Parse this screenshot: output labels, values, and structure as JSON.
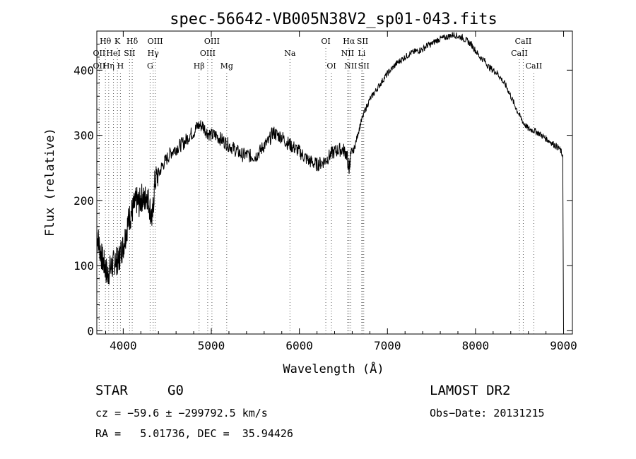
{
  "chart_data": {
    "type": "line",
    "title": "spec-56642-VB005N38V2_sp01-043.fits",
    "xlabel": "Wavelength (Å)",
    "ylabel": "Flux (relative)",
    "xlim": [
      3700,
      9100
    ],
    "ylim": [
      -5,
      460
    ],
    "xticks": [
      4000,
      5000,
      6000,
      7000,
      8000,
      9000
    ],
    "yticks": [
      0,
      100,
      200,
      300,
      400
    ],
    "grid": false,
    "series": [
      {
        "x": [
          3700,
          3730,
          3760,
          3790,
          3820,
          3850,
          3880,
          3910,
          3940,
          3970,
          4000,
          4030,
          4060,
          4090,
          4120,
          4150,
          4180,
          4210,
          4240,
          4270,
          4300,
          4330,
          4360,
          4400,
          4450,
          4500,
          4550,
          4600,
          4650,
          4700,
          4750,
          4800,
          4850,
          4900,
          4950,
          5000,
          5050,
          5100,
          5150,
          5200,
          5250,
          5300,
          5350,
          5400,
          5450,
          5500,
          5550,
          5600,
          5650,
          5700,
          5750,
          5800,
          5850,
          5900,
          5950,
          6000,
          6050,
          6100,
          6150,
          6200,
          6250,
          6300,
          6350,
          6400,
          6450,
          6500,
          6540,
          6563,
          6580,
          6620,
          6660,
          6700,
          6750,
          6800,
          6850,
          6900,
          6950,
          7000,
          7050,
          7100,
          7150,
          7200,
          7250,
          7300,
          7350,
          7400,
          7450,
          7500,
          7550,
          7600,
          7650,
          7700,
          7750,
          7800,
          7850,
          7900,
          7950,
          8000,
          8050,
          8100,
          8150,
          8200,
          8250,
          8300,
          8350,
          8400,
          8450,
          8500,
          8550,
          8600,
          8650,
          8700,
          8750,
          8800,
          8850,
          8900,
          8950,
          8990
        ],
        "y": [
          150,
          130,
          110,
          100,
          85,
          95,
          100,
          110,
          105,
          120,
          130,
          150,
          170,
          180,
          190,
          200,
          195,
          205,
          200,
          210,
          190,
          170,
          230,
          240,
          255,
          265,
          275,
          280,
          285,
          290,
          300,
          305,
          315,
          315,
          305,
          300,
          300,
          295,
          290,
          285,
          280,
          275,
          270,
          270,
          268,
          268,
          275,
          285,
          290,
          305,
          300,
          298,
          290,
          285,
          280,
          275,
          268,
          262,
          258,
          255,
          258,
          262,
          270,
          275,
          278,
          278,
          270,
          245,
          268,
          278,
          300,
          320,
          340,
          355,
          365,
          375,
          385,
          395,
          402,
          410,
          415,
          420,
          425,
          428,
          430,
          432,
          438,
          440,
          445,
          448,
          450,
          452,
          455,
          452,
          450,
          445,
          440,
          430,
          420,
          415,
          405,
          400,
          395,
          385,
          375,
          360,
          345,
          330,
          318,
          310,
          308,
          305,
          300,
          295,
          290,
          285,
          280,
          270
        ]
      }
    ],
    "line_markers": [
      {
        "label": "Hθ",
        "x": 3798,
        "row": 1
      },
      {
        "label": "OII",
        "x": 3727,
        "row": 2
      },
      {
        "label": "OII",
        "x": 3727,
        "row": 3
      },
      {
        "label": "K",
        "x": 3934,
        "row": 1
      },
      {
        "label": "HeI",
        "x": 3889,
        "row": 2
      },
      {
        "label": "Hη",
        "x": 3835,
        "row": 3
      },
      {
        "label": "SII",
        "x": 4072,
        "row": 2
      },
      {
        "label": "H",
        "x": 3968,
        "row": 3
      },
      {
        "label": "Hδ",
        "x": 4102,
        "row": 1
      },
      {
        "label": "OIII",
        "x": 4363,
        "row": 1
      },
      {
        "label": "Hγ",
        "x": 4340,
        "row": 2
      },
      {
        "label": "G",
        "x": 4305,
        "row": 3
      },
      {
        "label": "Hβ",
        "x": 4861,
        "row": 3
      },
      {
        "label": "OIII",
        "x": 5007,
        "row": 1
      },
      {
        "label": "OIII",
        "x": 4959,
        "row": 2
      },
      {
        "label": "Mg",
        "x": 5175,
        "row": 3
      },
      {
        "label": "Na",
        "x": 5893,
        "row": 2
      },
      {
        "label": "OI",
        "x": 6300,
        "row": 1
      },
      {
        "label": "OI",
        "x": 6364,
        "row": 3
      },
      {
        "label": "Hα",
        "x": 6563,
        "row": 1
      },
      {
        "label": "SII",
        "x": 6717,
        "row": 1
      },
      {
        "label": "NII",
        "x": 6548,
        "row": 2
      },
      {
        "label": "Li",
        "x": 6708,
        "row": 2
      },
      {
        "label": "NII",
        "x": 6583,
        "row": 3
      },
      {
        "label": "SII",
        "x": 6731,
        "row": 3
      },
      {
        "label": "CaII",
        "x": 8542,
        "row": 1
      },
      {
        "label": "CaII",
        "x": 8498,
        "row": 2
      },
      {
        "label": "CaII",
        "x": 8662,
        "row": 3
      }
    ]
  },
  "info": {
    "object_class": "STAR",
    "subclass": "G0",
    "survey": "LAMOST DR2",
    "cz": "cz = −59.6 ± −299792.5 km/s",
    "obs_date": "Obs−Date: 20131215",
    "coords": "RA =   5.01736, DEC =  35.94426"
  }
}
